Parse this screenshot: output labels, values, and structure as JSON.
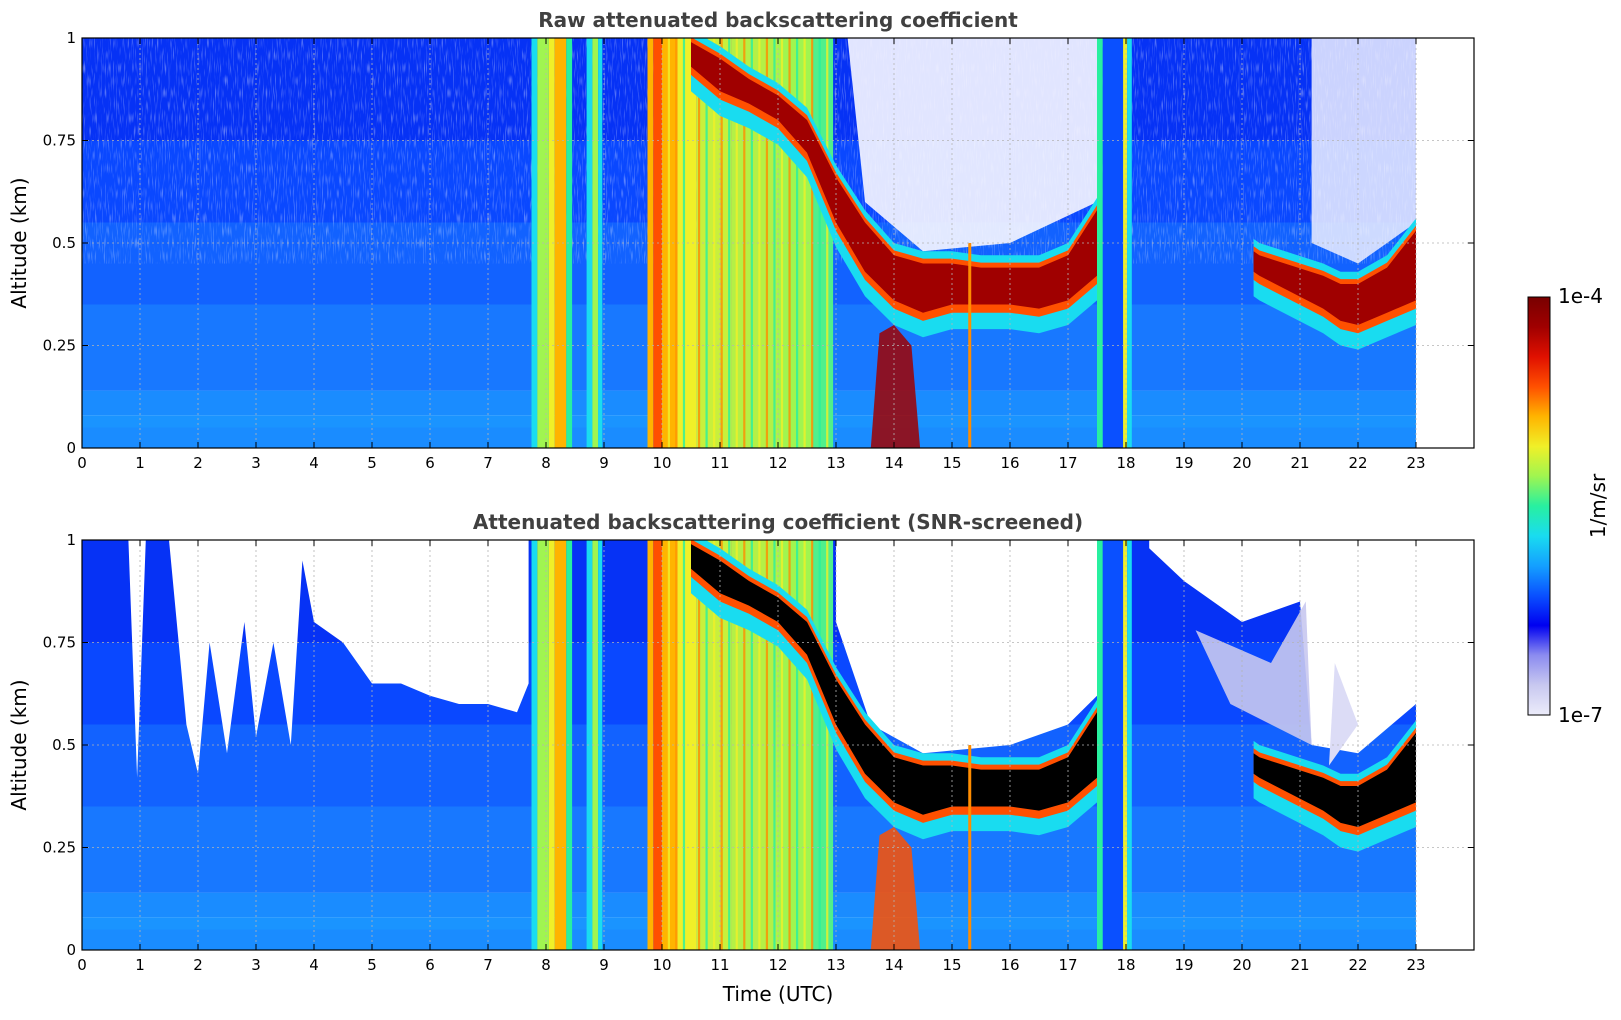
{
  "chart_data": [
    {
      "type": "heatmap",
      "title": "Raw attenuated backscattering coefficient",
      "xlabel": "",
      "ylabel": "Altitude (km)",
      "xlim": [
        0,
        24
      ],
      "ylim": [
        0,
        1
      ],
      "x_ticks": [
        "0",
        "1",
        "2",
        "3",
        "4",
        "5",
        "6",
        "7",
        "8",
        "9",
        "10",
        "11",
        "12",
        "13",
        "14",
        "15",
        "16",
        "17",
        "18",
        "19",
        "20",
        "21",
        "22",
        "23"
      ],
      "y_ticks": [
        "0",
        "0.25",
        "0.5",
        "0.75",
        "1"
      ],
      "data_end_time": 23,
      "grid": true,
      "screened": false,
      "cloud_layer": {
        "time": [
          10.5,
          11,
          11.5,
          12,
          12.5,
          13,
          13.5,
          14,
          14.5,
          15,
          15.5,
          16,
          16.5,
          17,
          17.5
        ],
        "base_alt": [
          0.93,
          0.87,
          0.84,
          0.8,
          0.72,
          0.55,
          0.43,
          0.36,
          0.33,
          0.35,
          0.35,
          0.35,
          0.34,
          0.36,
          0.42
        ],
        "top_alt": [
          0.99,
          0.95,
          0.9,
          0.86,
          0.8,
          0.66,
          0.55,
          0.47,
          0.45,
          0.45,
          0.44,
          0.44,
          0.44,
          0.47,
          0.58
        ]
      },
      "cloud_layer_late": {
        "time": [
          20.2,
          20.3,
          21.4,
          21.7,
          22,
          22.5,
          23
        ],
        "base_alt": [
          0.43,
          0.42,
          0.34,
          0.31,
          0.3,
          0.33,
          0.36
        ],
        "top_alt": [
          0.48,
          0.47,
          0.42,
          0.4,
          0.4,
          0.44,
          0.53
        ]
      },
      "precip_periods": [
        [
          7.8,
          8.0
        ],
        [
          8.1,
          8.4
        ],
        [
          8.7,
          8.95
        ],
        [
          9.75,
          10.05
        ],
        [
          10.05,
          12.95
        ],
        [
          17.5,
          17.7
        ],
        [
          17.95,
          18.05
        ]
      ]
    },
    {
      "type": "heatmap",
      "title": "Attenuated backscattering coefficient (SNR-screened)",
      "xlabel": "Time (UTC)",
      "ylabel": "Altitude (km)",
      "xlim": [
        0,
        24
      ],
      "ylim": [
        0,
        1
      ],
      "x_ticks": [
        "0",
        "1",
        "2",
        "3",
        "4",
        "5",
        "6",
        "7",
        "8",
        "9",
        "10",
        "11",
        "12",
        "13",
        "14",
        "15",
        "16",
        "17",
        "18",
        "19",
        "20",
        "21",
        "22",
        "23"
      ],
      "y_ticks": [
        "0",
        "0.25",
        "0.5",
        "0.75",
        "1"
      ],
      "data_end_time": 23,
      "grid": true,
      "screened": true,
      "screen_top": {
        "time": [
          0,
          0.8,
          0.95,
          1.1,
          1.5,
          1.8,
          2.0,
          2.2,
          2.5,
          2.8,
          3.0,
          3.3,
          3.6,
          3.8,
          4.0,
          4.5,
          5.0,
          5.5,
          6.0,
          6.5,
          7.0,
          7.5,
          7.7
        ],
        "alt": [
          1.0,
          1.0,
          0.42,
          1.0,
          1.0,
          0.55,
          0.43,
          0.75,
          0.48,
          0.8,
          0.52,
          0.75,
          0.5,
          0.95,
          0.8,
          0.75,
          0.65,
          0.65,
          0.62,
          0.6,
          0.6,
          0.58,
          0.65
        ]
      },
      "cloud_layer": {
        "time": [
          10.5,
          11,
          11.5,
          12,
          12.5,
          13,
          13.5,
          14,
          14.5,
          15,
          15.5,
          16,
          16.5,
          17,
          17.5
        ],
        "base_alt": [
          0.93,
          0.87,
          0.84,
          0.8,
          0.72,
          0.55,
          0.43,
          0.36,
          0.33,
          0.35,
          0.35,
          0.35,
          0.34,
          0.36,
          0.42
        ],
        "top_alt": [
          0.99,
          0.95,
          0.9,
          0.86,
          0.8,
          0.66,
          0.55,
          0.47,
          0.45,
          0.45,
          0.44,
          0.44,
          0.44,
          0.47,
          0.58
        ]
      },
      "cloud_layer_late": {
        "time": [
          20.2,
          20.3,
          21.4,
          21.7,
          22,
          22.5,
          23
        ],
        "base_alt": [
          0.43,
          0.42,
          0.34,
          0.31,
          0.3,
          0.33,
          0.36
        ],
        "top_alt": [
          0.48,
          0.47,
          0.42,
          0.4,
          0.4,
          0.44,
          0.53
        ]
      },
      "precip_periods": [
        [
          7.8,
          8.0
        ],
        [
          8.1,
          8.4
        ],
        [
          8.7,
          8.95
        ],
        [
          9.75,
          10.05
        ],
        [
          10.05,
          12.95
        ],
        [
          17.5,
          17.7
        ],
        [
          17.95,
          18.05
        ]
      ]
    }
  ],
  "colorbar": {
    "label": "1/m/sr",
    "min_label": "1e-7",
    "max_label": "1e-4",
    "scale": "log",
    "range": [
      1e-07,
      0.0001
    ],
    "colormap": [
      "#ececfa",
      "#c8c8f0",
      "#8c8cf0",
      "#0000f0",
      "#0a50ff",
      "#14a0ff",
      "#19dcf0",
      "#28f0a0",
      "#a0f550",
      "#f0f028",
      "#ffb400",
      "#ff5000",
      "#e01000",
      "#a00000",
      "#780000"
    ]
  }
}
